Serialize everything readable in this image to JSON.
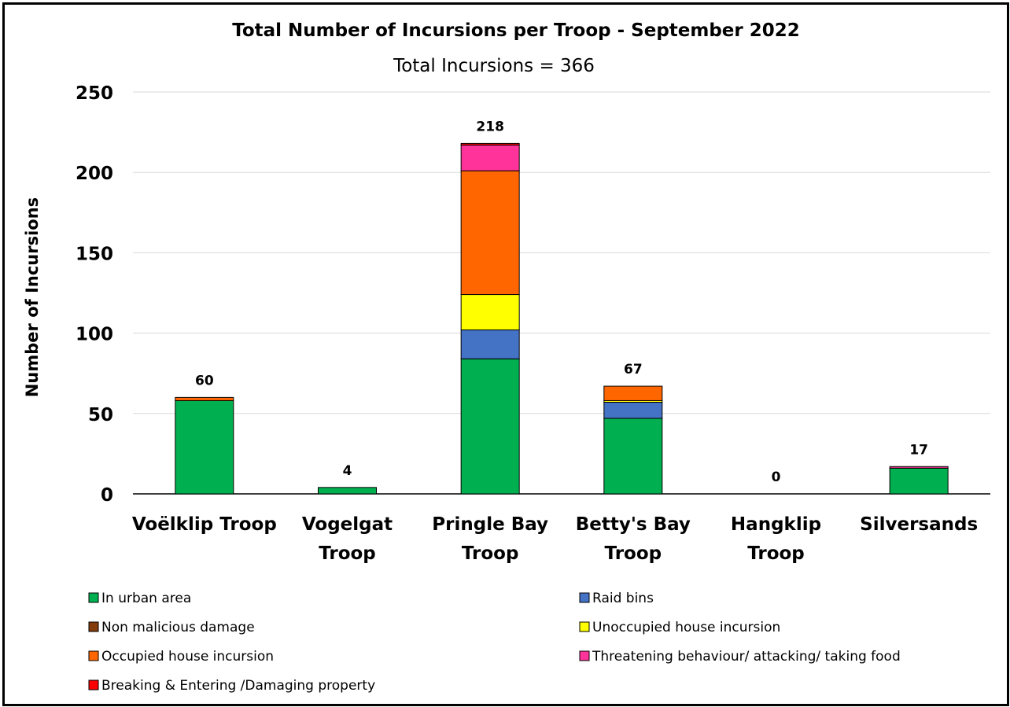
{
  "chart_data": {
    "type": "bar",
    "stacked": true,
    "title": "Total Number of Incursions per Troop -  September 2022",
    "subtitle": "Total Incursions =    366",
    "xlabel": "",
    "ylabel": "Number of Incursions",
    "ylim": [
      0,
      250
    ],
    "yticks": [
      "0",
      "50",
      "100",
      "150",
      "200",
      "250"
    ],
    "grid": true,
    "legend_position": "bottom",
    "categories": [
      [
        "Voëlklip Troop"
      ],
      [
        "Vogelgat",
        "Troop"
      ],
      [
        "Pringle Bay",
        "Troop"
      ],
      [
        "Betty's Bay",
        "Troop"
      ],
      [
        "Hangklip",
        "Troop"
      ],
      [
        "Silversands"
      ]
    ],
    "totals": [
      "60",
      "4",
      "218",
      "67",
      "0",
      "17"
    ],
    "series": [
      {
        "name": "In urban area",
        "color": "#00b050",
        "values": [
          58,
          4,
          84,
          47,
          0,
          16
        ]
      },
      {
        "name": "Raid bins",
        "color": "#4472c4",
        "values": [
          0,
          0,
          18,
          10,
          0,
          0
        ]
      },
      {
        "name": "Non malicious damage",
        "color": "#843c0c",
        "values": [
          0,
          0,
          0,
          0,
          0,
          0
        ]
      },
      {
        "name": "Unoccupied house incursion",
        "color": "#ffff00",
        "values": [
          0,
          0,
          22,
          1,
          0,
          0
        ]
      },
      {
        "name": "Occupied house incursion",
        "color": "#ff6600",
        "values": [
          2,
          0,
          77,
          9,
          0,
          0
        ]
      },
      {
        "name": "Threatening behaviour/ attacking/ taking food",
        "color": "#ff3399",
        "values": [
          0,
          0,
          16,
          0,
          0,
          1
        ]
      },
      {
        "name": "Breaking & Entering /Damaging property",
        "color": "#ff0000",
        "values": [
          0,
          0,
          1,
          0,
          0,
          0
        ]
      }
    ],
    "legend_order": [
      "In urban area",
      "Raid bins",
      "Non malicious damage",
      "Unoccupied house incursion",
      "Occupied house incursion",
      "Threatening behaviour/ attacking/ taking food",
      "Breaking & Entering /Damaging property"
    ]
  }
}
